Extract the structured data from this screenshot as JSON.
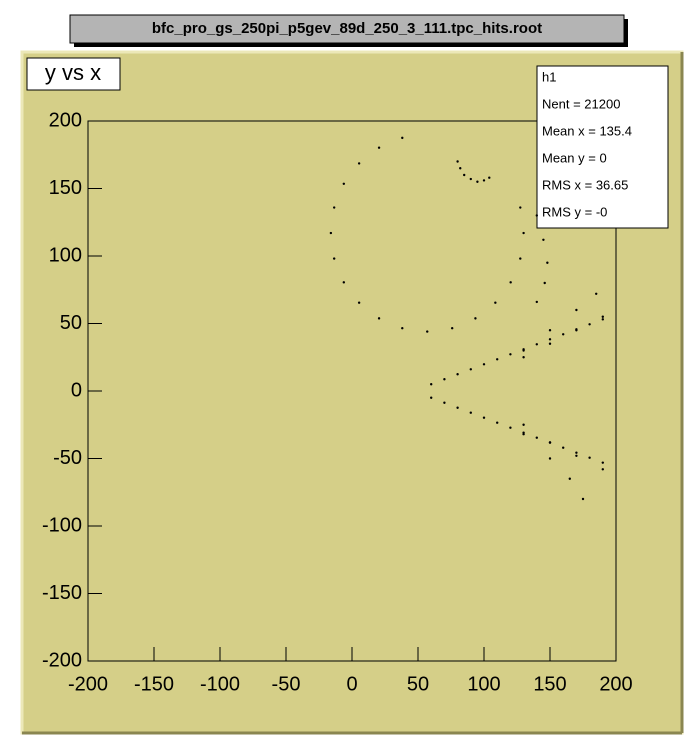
{
  "chart_data": {
    "type": "scatter",
    "title": "bfc_pro_gs_250pi_p5gev_89d_250_3_111.tpc_hits.root",
    "subtitle": "y vs x",
    "stats": {
      "title": "h1",
      "entries": [
        "Nent = 21200",
        "Mean x = 135.4",
        "Mean y = 0",
        "RMS x = 36.65",
        "RMS y = -0"
      ]
    },
    "x": [
      38.1,
      20.5,
      5.4,
      -6.2,
      -13.5,
      -16,
      -13.5,
      -6.2,
      5.4,
      20.5,
      38.1,
      57,
      75.9,
      93.5,
      108.6,
      120.2,
      127.5,
      130,
      127.5,
      80,
      82,
      85,
      90,
      95,
      100,
      104,
      140,
      145,
      148,
      146,
      140,
      60,
      70,
      80,
      90,
      100,
      110,
      120,
      130,
      140,
      150,
      160,
      170,
      180,
      190,
      130,
      150,
      170,
      185,
      130,
      150,
      170,
      190,
      60,
      70,
      80,
      90,
      100,
      110,
      120,
      130,
      140,
      150,
      160,
      170,
      180,
      190,
      130,
      150,
      165,
      175,
      130,
      150,
      170,
      190
    ],
    "values": [
      187.5,
      180.2,
      168.6,
      153.5,
      135.9,
      117,
      98.1,
      80.5,
      65.4,
      53.8,
      46.5,
      44,
      46.5,
      53.8,
      65.4,
      80.5,
      98.1,
      117,
      135.9,
      170,
      165,
      160,
      157,
      155,
      156,
      158,
      130,
      112,
      95,
      80,
      66,
      5,
      8.7,
      12.4,
      16.1,
      19.8,
      23.5,
      27.2,
      30.9,
      34.6,
      38.3,
      42,
      45.7,
      49.4,
      53.1,
      30,
      45,
      60,
      72,
      25,
      35,
      45,
      55,
      -5,
      -8.7,
      -12.4,
      -16.1,
      -19.8,
      -23.5,
      -27.2,
      -30.9,
      -34.6,
      -38.3,
      -42,
      -45.7,
      -49.4,
      -53.1,
      -32,
      -50,
      -65,
      -80,
      -25,
      -38,
      -48,
      -58
    ],
    "color": "#000000",
    "xlim": [
      -200,
      200
    ],
    "ylim": [
      -200,
      200
    ],
    "xticks": [
      -200,
      -150,
      -100,
      -50,
      0,
      50,
      100,
      150,
      200
    ],
    "yticks": [
      -200,
      -150,
      -100,
      -50,
      0,
      50,
      100,
      150,
      200
    ],
    "grid": false
  }
}
